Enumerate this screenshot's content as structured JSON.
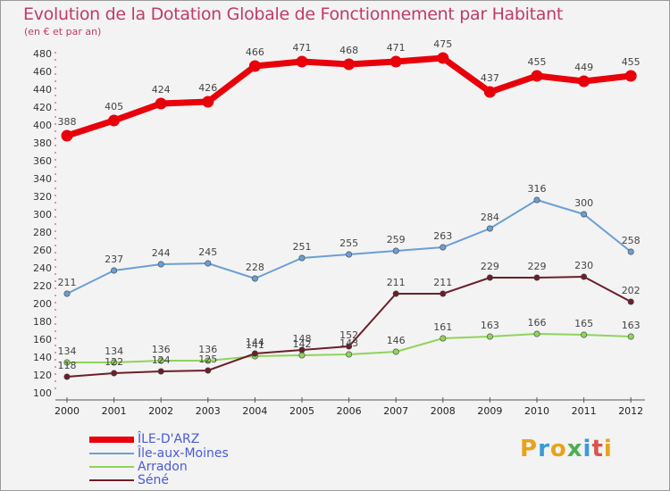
{
  "chart_data": {
    "type": "line",
    "title": "Evolution de la Dotation Globale de Fonctionnement par Habitant",
    "subtitle": "(en € et par an)",
    "categories": [
      "2000",
      "2001",
      "2002",
      "2003",
      "2004",
      "2005",
      "2006",
      "2007",
      "2008",
      "2009",
      "2010",
      "2011",
      "2012"
    ],
    "ylim": [
      100,
      480
    ],
    "yticks": [
      100,
      120,
      140,
      160,
      180,
      200,
      220,
      240,
      260,
      280,
      300,
      320,
      340,
      360,
      380,
      400,
      420,
      440,
      460,
      480
    ],
    "grid": false,
    "series": [
      {
        "name": "ÎLE-D'ARZ",
        "color": "#e8000b",
        "values": [
          388,
          405,
          424,
          426,
          466,
          471,
          468,
          471,
          475,
          437,
          455,
          449,
          455
        ]
      },
      {
        "name": "Île-aux-Moines",
        "color": "#6a9fd4",
        "values": [
          211,
          237,
          244,
          245,
          228,
          251,
          255,
          259,
          263,
          284,
          316,
          300,
          258
        ]
      },
      {
        "name": "Arradon",
        "color": "#8fd45a",
        "values": [
          134,
          134,
          136,
          136,
          141,
          142,
          143,
          146,
          161,
          163,
          166,
          165,
          163
        ]
      },
      {
        "name": "Séné",
        "color": "#6b1f28",
        "values": [
          118,
          122,
          124,
          125,
          144,
          148,
          152,
          211,
          211,
          229,
          229,
          230,
          202
        ]
      }
    ]
  },
  "brand": {
    "letters": [
      "P",
      "r",
      "o",
      "x",
      "i",
      "t",
      "i"
    ],
    "colors": [
      "#e8a21a",
      "#3a9ad9",
      "#e8a21a",
      "#4caf50",
      "#3a9ad9",
      "#d9534f",
      "#e8a21a"
    ]
  }
}
